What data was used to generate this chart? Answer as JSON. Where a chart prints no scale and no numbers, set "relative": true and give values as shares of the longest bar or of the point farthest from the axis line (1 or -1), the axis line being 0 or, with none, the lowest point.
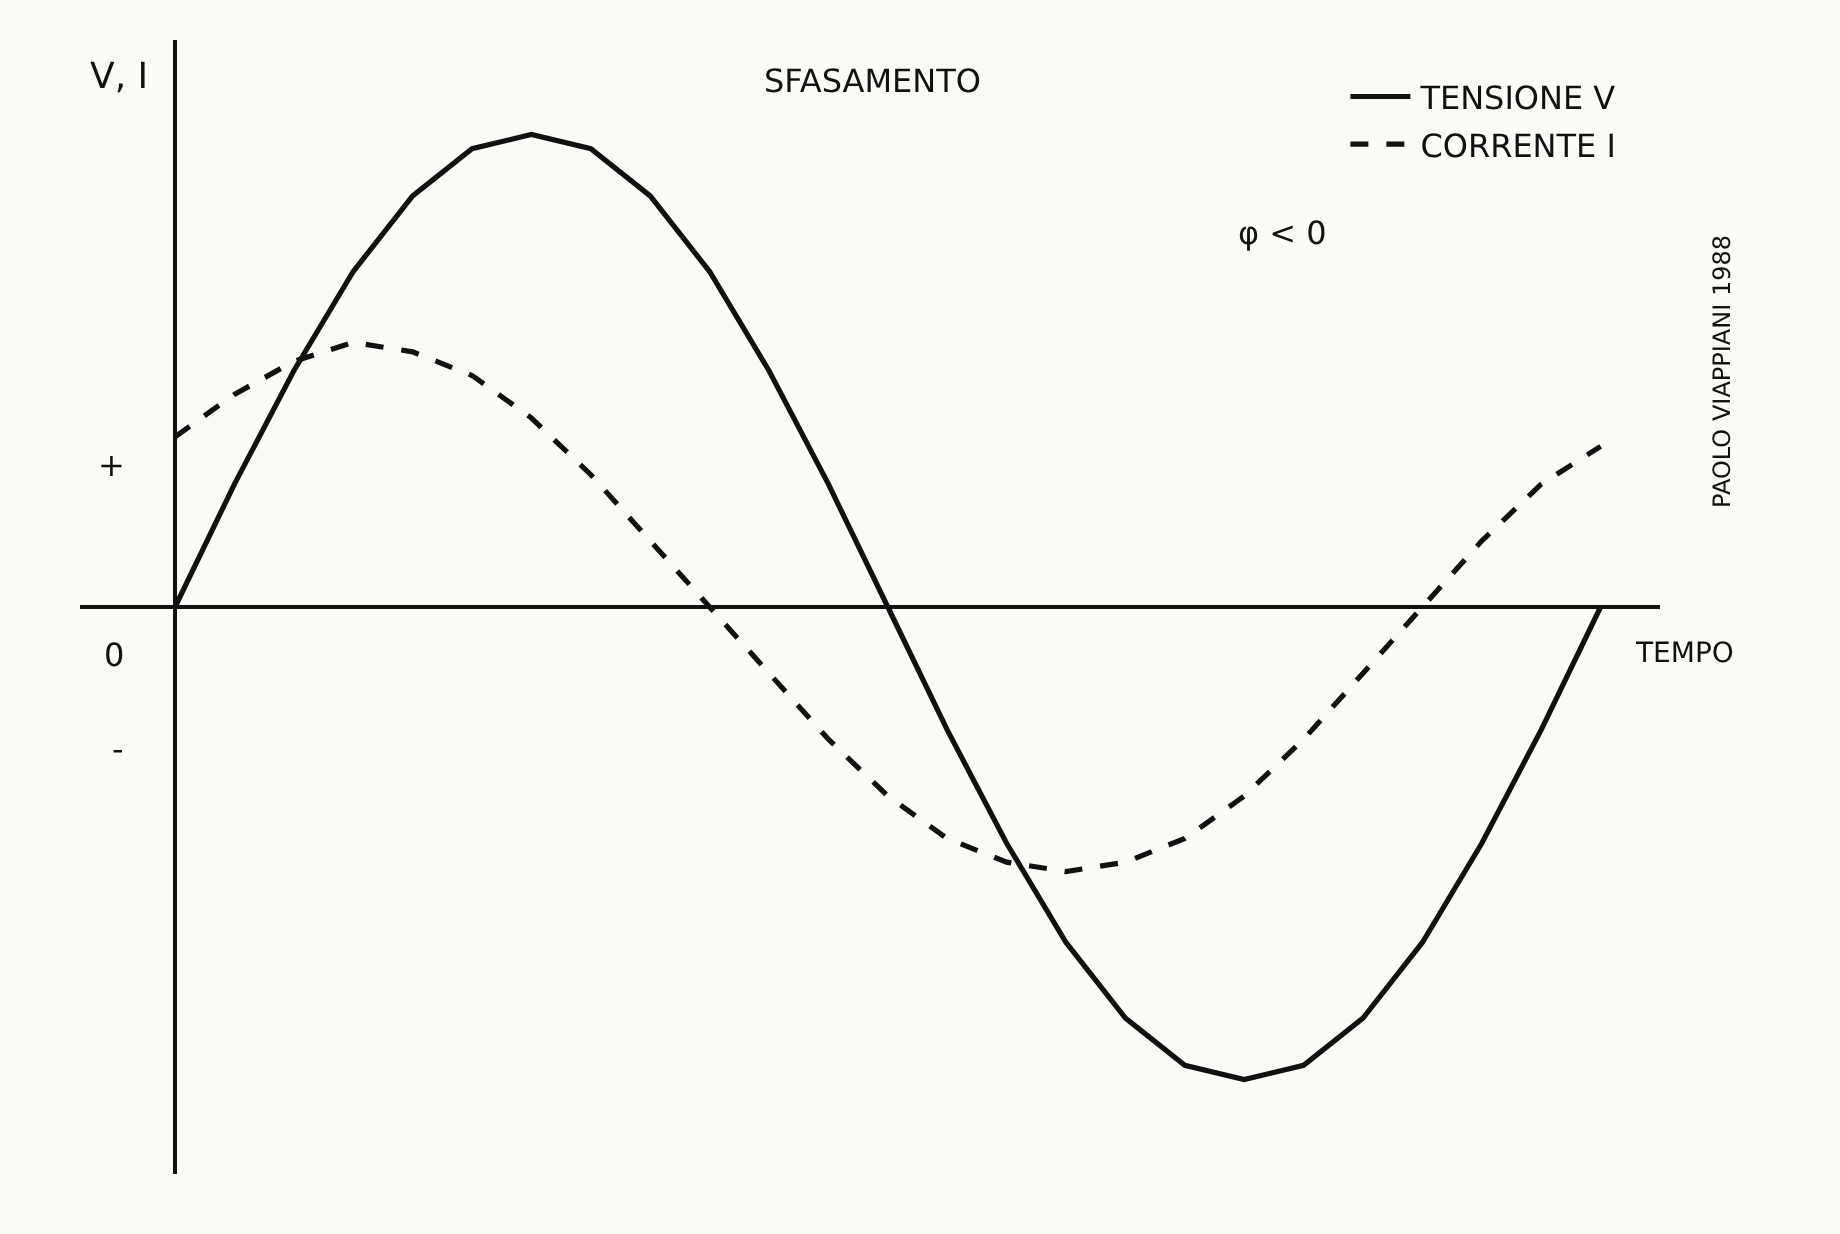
{
  "chart_data": {
    "type": "line",
    "relative": true,
    "xlabel": "TEMPO",
    "ylabel": "V, I",
    "categories": [
      null,
      null,
      null,
      null,
      null,
      null,
      null,
      null,
      null,
      null,
      null,
      null,
      null,
      null,
      null,
      null,
      null,
      null,
      null,
      null,
      null,
      null,
      null,
      null,
      null
    ],
    "series": [
      {
        "name": "TENSIONE V",
        "color": "#111111",
        "line_style": "solid",
        "values": [
          0,
          0.26,
          0.5,
          0.71,
          0.87,
          0.97,
          1,
          0.97,
          0.87,
          0.71,
          0.5,
          0.26,
          0,
          -0.26,
          -0.5,
          -0.71,
          -0.87,
          -0.97,
          -1,
          -0.97,
          -0.87,
          -0.71,
          -0.5,
          -0.26,
          0
        ]
      },
      {
        "name": "CORRENTE I",
        "color": "#111111",
        "line_style": "dashed",
        "values": [
          0.36,
          0.45,
          0.52,
          0.56,
          0.54,
          0.49,
          0.4,
          0.28,
          0.14,
          0,
          -0.14,
          -0.28,
          -0.4,
          -0.49,
          -0.54,
          -0.56,
          -0.54,
          -0.49,
          -0.4,
          -0.28,
          -0.14,
          0,
          0.14,
          0.26,
          0.34
        ]
      }
    ],
    "annotations": [
      "SFASAMENTO",
      "φ < 0",
      "+",
      "-",
      "0",
      "PAOLO VIAPPIANI 1988"
    ],
    "legend": "top right",
    "marker": "none"
  }
}
